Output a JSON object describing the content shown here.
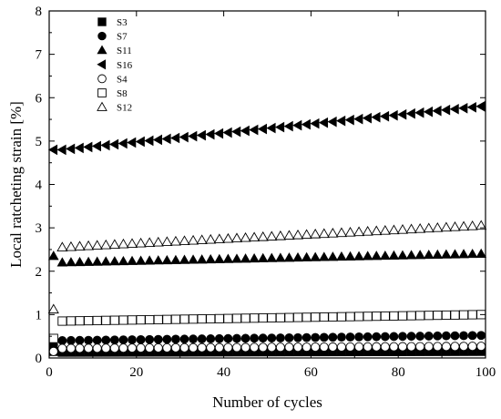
{
  "chart_data": {
    "type": "scatter",
    "xlabel": "Number of cycles",
    "ylabel": "Local ratcheting strain [%]",
    "xlim": [
      0,
      100
    ],
    "ylim": [
      0,
      8
    ],
    "xticks": [
      0,
      20,
      40,
      60,
      80,
      100
    ],
    "yticks": [
      0,
      1,
      2,
      3,
      4,
      5,
      6,
      7,
      8
    ],
    "grid": false,
    "legend_position": "top-left",
    "x": [
      1,
      3,
      5,
      7,
      9,
      11,
      13,
      15,
      17,
      19,
      21,
      23,
      25,
      27,
      29,
      31,
      33,
      35,
      37,
      39,
      41,
      43,
      45,
      47,
      49,
      51,
      53,
      55,
      57,
      59,
      61,
      63,
      65,
      67,
      69,
      71,
      73,
      75,
      77,
      79,
      81,
      83,
      85,
      87,
      89,
      91,
      93,
      95,
      97,
      99
    ],
    "series": [
      {
        "name": "S3",
        "marker": "filled-square",
        "first": 0.15,
        "start": 0.13,
        "end": 0.15
      },
      {
        "name": "S7",
        "marker": "filled-circle",
        "first": 0.3,
        "start": 0.4,
        "end": 0.52
      },
      {
        "name": "S11",
        "marker": "filled-triangle-up",
        "first": 2.35,
        "start": 2.2,
        "end": 2.4
      },
      {
        "name": "S16",
        "marker": "filled-triangle-left",
        "first": 4.8,
        "start": 4.8,
        "end": 5.8
      },
      {
        "name": "S4",
        "marker": "open-circle",
        "first": 0.15,
        "start": 0.22,
        "end": 0.27
      },
      {
        "name": "S8",
        "marker": "open-square",
        "first": 0.45,
        "start": 0.85,
        "end": 1.0
      },
      {
        "name": "S12",
        "marker": "open-triangle-up",
        "first": 1.12,
        "start": 2.55,
        "end": 3.05
      }
    ]
  }
}
